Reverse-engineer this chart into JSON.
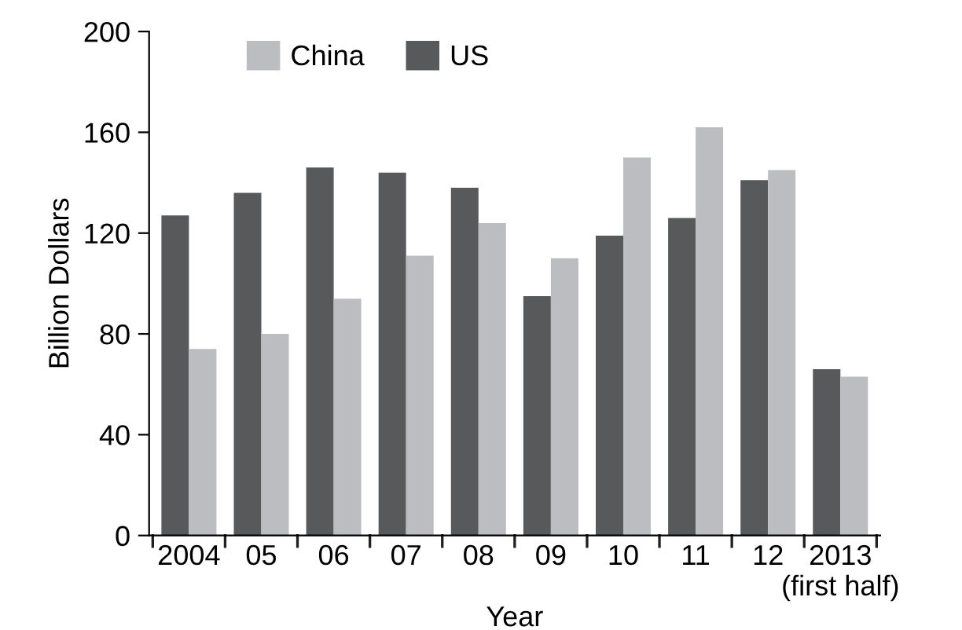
{
  "chart_data": {
    "type": "bar",
    "xlabel": "Year",
    "ylabel": "Billion Dollars",
    "categories": [
      "2004",
      "05",
      "06",
      "07",
      "08",
      "09",
      "10",
      "11",
      "12",
      "2013\n(first half)"
    ],
    "series": [
      {
        "name": "US",
        "color": "#58595b",
        "values": [
          127,
          136,
          146,
          144,
          138,
          95,
          119,
          126,
          141,
          66
        ]
      },
      {
        "name": "China",
        "color": "#bcbdc0",
        "values": [
          74,
          80,
          94,
          111,
          124,
          110,
          150,
          162,
          145,
          63
        ]
      }
    ],
    "ylim": [
      0,
      200
    ],
    "yticks": [
      0,
      40,
      80,
      120,
      160,
      200
    ],
    "grid": false,
    "legend": "top"
  }
}
